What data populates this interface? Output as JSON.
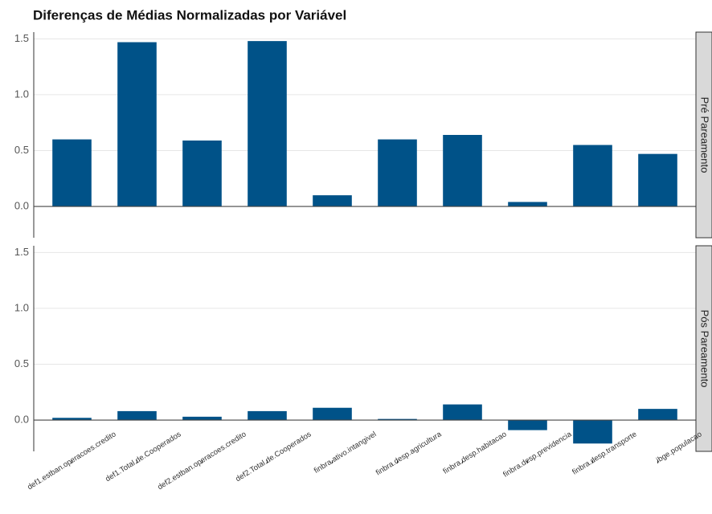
{
  "chart_data": {
    "type": "bar",
    "title": "Diferenças de Médias Normalizadas por Variável",
    "categories": [
      "def1.estban.operacoes.credito",
      "def1.Total.de.Cooperados",
      "def2.estban.operacoes.credito",
      "def2.Total.de.Cooperados",
      "finbra.ativo.intangivel",
      "finbra.desp.agricultura",
      "finbra.desp.habitacao",
      "finbra.desp.previdencia",
      "finbra.desp.transporte",
      "ibge.populacao"
    ],
    "color": "#005288",
    "series": [
      {
        "name": "Pré Pareamento",
        "values": [
          0.6,
          1.47,
          0.59,
          1.48,
          0.1,
          0.6,
          0.64,
          0.04,
          0.55,
          0.47
        ]
      },
      {
        "name": "Pós Pareamento",
        "values": [
          0.02,
          0.08,
          0.03,
          0.08,
          0.11,
          0.01,
          0.14,
          -0.09,
          -0.21,
          0.1
        ]
      }
    ],
    "ylim": [
      -0.28,
      1.56
    ],
    "yticks": [
      {
        "value": 0,
        "label": "0.0"
      },
      0.5,
      {
        "value": 1,
        "label": "1.0"
      },
      1.5
    ],
    "grid": true
  }
}
